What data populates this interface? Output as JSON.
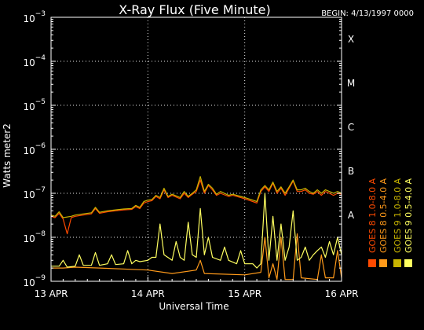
{
  "chart_data": {
    "type": "line",
    "title": "X-Ray Flux (Five Minute)",
    "begin_label": "BEGIN: 4/13/1997 0000",
    "xlabel": "Universal Time",
    "ylabel": "Watts meter2",
    "x_ticks": [
      "13 APR",
      "14 APR",
      "15 APR",
      "16 APR"
    ],
    "x_range": [
      0,
      72
    ],
    "x_unit": "hours since 13 APR 0000",
    "ylim": [
      1e-09,
      0.001
    ],
    "y_scale": "log",
    "y_ticks": [
      {
        "base": "10",
        "exp": "−9"
      },
      {
        "base": "10",
        "exp": "−8"
      },
      {
        "base": "10",
        "exp": "−7"
      },
      {
        "base": "10",
        "exp": "−6"
      },
      {
        "base": "10",
        "exp": "−5"
      },
      {
        "base": "10",
        "exp": "−4"
      },
      {
        "base": "10",
        "exp": "−3"
      }
    ],
    "flare_classes": [
      "A",
      "B",
      "C",
      "M",
      "X"
    ],
    "grid": true,
    "legend_placement": "right",
    "series": [
      {
        "name": "GOES 8 1.0-8.0 A",
        "color": "#ff4a00",
        "points": [
          [
            0,
            3e-08
          ],
          [
            1,
            2.8e-08
          ],
          [
            2,
            3.5e-08
          ],
          [
            3,
            2.6e-08
          ],
          [
            4,
            1.2e-08
          ],
          [
            5,
            2.8e-08
          ],
          [
            6,
            3e-08
          ],
          [
            8,
            3.2e-08
          ],
          [
            10,
            3.4e-08
          ],
          [
            11,
            4.5e-08
          ],
          [
            12,
            3.5e-08
          ],
          [
            14,
            3.8e-08
          ],
          [
            16,
            4e-08
          ],
          [
            18,
            4.2e-08
          ],
          [
            20,
            4.3e-08
          ],
          [
            21,
            5e-08
          ],
          [
            22,
            4.5e-08
          ],
          [
            23,
            6e-08
          ],
          [
            24,
            6.5e-08
          ],
          [
            25,
            6.8e-08
          ],
          [
            26,
            8.5e-08
          ],
          [
            27,
            7.5e-08
          ],
          [
            28,
            1.2e-07
          ],
          [
            29,
            8e-08
          ],
          [
            30,
            9e-08
          ],
          [
            32,
            7.5e-08
          ],
          [
            33,
            1e-07
          ],
          [
            34,
            8e-08
          ],
          [
            35,
            9.5e-08
          ],
          [
            36,
            1.1e-07
          ],
          [
            37,
            2e-07
          ],
          [
            38,
            1e-07
          ],
          [
            39,
            1.5e-07
          ],
          [
            40,
            1.2e-07
          ],
          [
            41,
            9e-08
          ],
          [
            42,
            1e-07
          ],
          [
            44,
            8.5e-08
          ],
          [
            45,
            9e-08
          ],
          [
            47,
            8e-08
          ],
          [
            48,
            7.5e-08
          ],
          [
            50,
            6.5e-08
          ],
          [
            51,
            6e-08
          ],
          [
            52,
            1.1e-07
          ],
          [
            53,
            1.4e-07
          ],
          [
            54,
            1.1e-07
          ],
          [
            55,
            1.7e-07
          ],
          [
            56,
            1e-07
          ],
          [
            57,
            1.3e-07
          ],
          [
            58,
            9e-08
          ],
          [
            59,
            1.3e-07
          ],
          [
            60,
            1.9e-07
          ],
          [
            61,
            1.1e-07
          ],
          [
            62,
            1.1e-07
          ],
          [
            63,
            1.2e-07
          ],
          [
            64,
            1e-07
          ],
          [
            65,
            9.5e-08
          ],
          [
            66,
            1.1e-07
          ],
          [
            67,
            9e-08
          ],
          [
            68,
            1.1e-07
          ],
          [
            69,
            1e-07
          ],
          [
            70,
            9e-08
          ],
          [
            71,
            1e-07
          ],
          [
            72,
            9.5e-08
          ]
        ]
      },
      {
        "name": "GOES 8 0.5-4.0 A",
        "color": "#ff9a1a",
        "points": [
          [
            0,
            2e-09
          ],
          [
            3,
            2e-09
          ],
          [
            6,
            2.1e-09
          ],
          [
            12,
            2e-09
          ],
          [
            24,
            1.8e-09
          ],
          [
            30,
            1.5e-09
          ],
          [
            36,
            1.8e-09
          ],
          [
            37,
            3e-09
          ],
          [
            38,
            1.5e-09
          ],
          [
            48,
            1.4e-09
          ],
          [
            52,
            1.6e-09
          ],
          [
            53,
            1e-08
          ],
          [
            54,
            1.2e-09
          ],
          [
            55,
            2.5e-09
          ],
          [
            56,
            1.1e-09
          ],
          [
            57,
            1e-08
          ],
          [
            58,
            1.1e-09
          ],
          [
            60,
            1.1e-09
          ],
          [
            61,
            1.2e-08
          ],
          [
            62,
            1.2e-09
          ],
          [
            66,
            1.1e-09
          ],
          [
            67,
            4e-09
          ],
          [
            68,
            1.2e-09
          ],
          [
            70,
            1.2e-09
          ],
          [
            71,
            5e-09
          ],
          [
            72,
            1.2e-09
          ]
        ]
      },
      {
        "name": "GOES 9 1.0-8.0 A",
        "color": "#c8b400",
        "points": [
          [
            0,
            3.2e-08
          ],
          [
            1,
            3e-08
          ],
          [
            2,
            3.8e-08
          ],
          [
            3,
            2.8e-08
          ],
          [
            5,
            3e-08
          ],
          [
            6,
            3.2e-08
          ],
          [
            8,
            3.4e-08
          ],
          [
            10,
            3.6e-08
          ],
          [
            11,
            4.8e-08
          ],
          [
            12,
            3.7e-08
          ],
          [
            14,
            4e-08
          ],
          [
            16,
            4.2e-08
          ],
          [
            18,
            4.4e-08
          ],
          [
            20,
            4.5e-08
          ],
          [
            21,
            5.3e-08
          ],
          [
            22,
            4.8e-08
          ],
          [
            23,
            6.5e-08
          ],
          [
            24,
            7e-08
          ],
          [
            25,
            7.2e-08
          ],
          [
            26,
            9e-08
          ],
          [
            27,
            8e-08
          ],
          [
            28,
            1.3e-07
          ],
          [
            29,
            8.5e-08
          ],
          [
            30,
            9.5e-08
          ],
          [
            32,
            8e-08
          ],
          [
            33,
            1.1e-07
          ],
          [
            34,
            8.5e-08
          ],
          [
            35,
            1e-07
          ],
          [
            36,
            1.2e-07
          ],
          [
            37,
            2.4e-07
          ],
          [
            38,
            1.1e-07
          ],
          [
            39,
            1.6e-07
          ],
          [
            40,
            1.3e-07
          ],
          [
            41,
            9.5e-08
          ],
          [
            42,
            1.1e-07
          ],
          [
            44,
            9e-08
          ],
          [
            45,
            9.5e-08
          ],
          [
            47,
            8.5e-08
          ],
          [
            48,
            8e-08
          ],
          [
            50,
            7e-08
          ],
          [
            51,
            6.5e-08
          ],
          [
            52,
            1.2e-07
          ],
          [
            53,
            1.5e-07
          ],
          [
            54,
            1.2e-07
          ],
          [
            55,
            1.8e-07
          ],
          [
            56,
            1.1e-07
          ],
          [
            57,
            1.4e-07
          ],
          [
            58,
            1e-07
          ],
          [
            59,
            1.4e-07
          ],
          [
            60,
            2e-07
          ],
          [
            61,
            1.2e-07
          ],
          [
            62,
            1.2e-07
          ],
          [
            63,
            1.3e-07
          ],
          [
            64,
            1.1e-07
          ],
          [
            65,
            1e-07
          ],
          [
            66,
            1.2e-07
          ],
          [
            67,
            1e-07
          ],
          [
            68,
            1.2e-07
          ],
          [
            69,
            1.1e-07
          ],
          [
            70,
            1e-07
          ],
          [
            71,
            1.1e-07
          ],
          [
            72,
            1e-07
          ]
        ]
      },
      {
        "name": "GOES 9 0.5-4.0 A",
        "color": "#ffff60",
        "points": [
          [
            0,
            2.2e-09
          ],
          [
            2,
            2.2e-09
          ],
          [
            3,
            3e-09
          ],
          [
            4,
            2.1e-09
          ],
          [
            6,
            2.2e-09
          ],
          [
            7,
            4e-09
          ],
          [
            8,
            2.3e-09
          ],
          [
            10,
            2.3e-09
          ],
          [
            11,
            4.5e-09
          ],
          [
            12,
            2.3e-09
          ],
          [
            14,
            2.5e-09
          ],
          [
            15,
            4e-09
          ],
          [
            16,
            2.4e-09
          ],
          [
            18,
            2.5e-09
          ],
          [
            19,
            5e-09
          ],
          [
            20,
            2.5e-09
          ],
          [
            21,
            3e-09
          ],
          [
            22,
            2.8e-09
          ],
          [
            24,
            3e-09
          ],
          [
            25,
            3.5e-09
          ],
          [
            26,
            3.5e-09
          ],
          [
            27,
            2e-08
          ],
          [
            28,
            4e-09
          ],
          [
            30,
            3e-09
          ],
          [
            31,
            8e-09
          ],
          [
            32,
            3.5e-09
          ],
          [
            33,
            3e-09
          ],
          [
            34,
            2.2e-08
          ],
          [
            35,
            4e-09
          ],
          [
            36,
            3.5e-09
          ],
          [
            37,
            4.5e-08
          ],
          [
            38,
            4e-09
          ],
          [
            39,
            1e-08
          ],
          [
            40,
            3.5e-09
          ],
          [
            42,
            3e-09
          ],
          [
            43,
            6e-09
          ],
          [
            44,
            3e-09
          ],
          [
            46,
            2.5e-09
          ],
          [
            47,
            5e-09
          ],
          [
            48,
            2.5e-09
          ],
          [
            50,
            2.5e-09
          ],
          [
            51,
            2e-09
          ],
          [
            52,
            2.5e-09
          ],
          [
            53,
            1e-07
          ],
          [
            54,
            3e-09
          ],
          [
            55,
            3e-08
          ],
          [
            56,
            3e-09
          ],
          [
            57,
            2e-08
          ],
          [
            58,
            3e-09
          ],
          [
            59,
            6e-09
          ],
          [
            60,
            4e-08
          ],
          [
            61,
            3e-09
          ],
          [
            62,
            3.5e-09
          ],
          [
            63,
            6e-09
          ],
          [
            64,
            3e-09
          ],
          [
            65,
            4e-09
          ],
          [
            66,
            5e-09
          ],
          [
            67,
            6e-09
          ],
          [
            68,
            3.5e-09
          ],
          [
            69,
            8e-09
          ],
          [
            70,
            4e-09
          ],
          [
            71,
            1e-08
          ],
          [
            72,
            4e-09
          ]
        ]
      }
    ]
  }
}
